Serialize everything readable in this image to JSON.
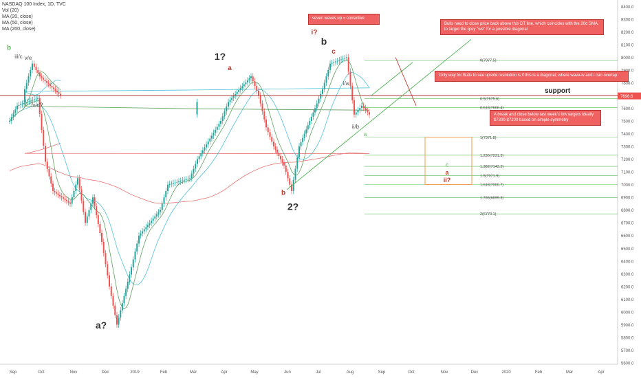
{
  "legend": {
    "title": "NASDAQ 100 Index, 1D, TVC",
    "lines": [
      "Vol (20)",
      "MA (20, close)",
      "MA (50, close)",
      "MA (200, close)"
    ]
  },
  "colors": {
    "up": "#26a69a",
    "down": "#ef5350",
    "ma20": "#5d9e5d",
    "ma50": "#4fc3d8",
    "ma200": "#e57373",
    "fib": "#5cb85c",
    "support": "#b33a3a",
    "annotation_bg": "#f06262",
    "box": "#f39c4a"
  },
  "chart_data": {
    "type": "candlestick",
    "title": "NASDAQ 100 Index, 1D, TVC",
    "y_axis": {
      "range": [
        5600,
        8450
      ],
      "ticks": [
        5600,
        5700,
        5800,
        5900,
        6000,
        6100,
        6200,
        6300,
        6400,
        6500,
        6600,
        6700,
        6800,
        6900,
        7000,
        7100,
        7200,
        7300,
        7400,
        7500,
        7600,
        7700,
        7800,
        7900,
        8000,
        8100,
        8200,
        8300,
        8400
      ],
      "tick_labels": [
        "5600.0",
        "5700.0",
        "5800.0",
        "5900.0",
        "6000.0",
        "6100.0",
        "6200.0",
        "6300.0",
        "6400.0",
        "6500.0",
        "6600.0",
        "6700.0",
        "6800.0",
        "6900.0",
        "7000.0",
        "7100.0",
        "7200.0",
        "7300.0",
        "7400.0",
        "7500.0",
        "7600.0",
        "7700.0",
        "7800.0",
        "7900.0",
        "8000.0",
        "8100.0",
        "8200.0",
        "8300.0",
        "8400.0"
      ],
      "current_price": 7696.6,
      "current_price_label": "7696.6"
    },
    "x_axis": {
      "labels": [
        "Sep",
        "Oct",
        "Nov",
        "Dec",
        "2019",
        "Feb",
        "Mar",
        "Apr",
        "May",
        "Jun",
        "Jul",
        "Aug",
        "Sep",
        "Oct",
        "Nov",
        "Dec",
        "2020",
        "Feb",
        "Mar",
        "Apr"
      ]
    },
    "pivots": [
      [
        "Sep",
        7500
      ],
      [
        "Sep",
        7620
      ],
      [
        "Oct",
        7680
      ],
      [
        "Oct",
        7180
      ],
      [
        "Oct",
        6950
      ],
      [
        "Nov",
        6850
      ],
      [
        "Nov",
        7050
      ],
      [
        "Nov",
        6700
      ],
      [
        "Nov",
        6900
      ],
      [
        "Dec",
        6550
      ],
      [
        "Dec",
        6200
      ],
      [
        "Dec",
        5900
      ],
      [
        "2019",
        6350
      ],
      [
        "2019",
        6600
      ],
      [
        "Feb",
        6800
      ],
      [
        "Feb",
        7000
      ],
      [
        "Mar",
        7050
      ],
      [
        "Mar",
        7200
      ],
      [
        "Apr",
        7500
      ],
      [
        "Apr",
        7650
      ],
      [
        "May",
        7850
      ],
      [
        "May",
        7700
      ],
      [
        "May",
        7450
      ],
      [
        "May",
        7300
      ],
      [
        "Jun",
        7150
      ],
      [
        "Jun",
        6950
      ],
      [
        "Jun",
        7300
      ],
      [
        "Jul",
        7600
      ],
      [
        "Jul",
        7750
      ],
      [
        "Jul",
        7950
      ],
      [
        "Aug",
        8000
      ],
      [
        "Aug",
        7550
      ],
      [
        "Aug",
        7620
      ],
      [
        "Aug",
        7550
      ],
      [
        "Sep",
        7750
      ],
      [
        "Sep",
        7950
      ],
      [
        "Sep",
        7850
      ],
      [
        "Oct",
        7700
      ]
    ],
    "fib_levels": [
      {
        "label": "0(7977.5)",
        "value": 7977.5
      },
      {
        "label": "0.5(7675.6)",
        "value": 7675.6
      },
      {
        "label": "0.618(7606.4)",
        "value": 7606.4
      },
      {
        "label": "1(7371.8)",
        "value": 7371.8
      },
      {
        "label": "1.236(7231.3)",
        "value": 7231.3
      },
      {
        "label": "1.382(7143.2)",
        "value": 7143.2
      },
      {
        "label": "1.5(7071.9)",
        "value": 7071.9
      },
      {
        "label": "1.618(7000.7)",
        "value": 7000.7
      },
      {
        "label": "1.786(6899.3)",
        "value": 6899.3
      },
      {
        "label": "2(6770.1)",
        "value": 6770.1
      }
    ],
    "support": {
      "label": "support",
      "value": 7700
    },
    "target_box": {
      "low": 7000.7,
      "high": 7371.8,
      "labels": [
        "c",
        "a",
        "ii?"
      ]
    },
    "wave_labels": [
      {
        "text": "a?",
        "x": "Dec",
        "y": 5870,
        "size": "big",
        "color": "#333"
      },
      {
        "text": "1?",
        "x": "Apr",
        "y": 7980,
        "size": "big",
        "color": "#333"
      },
      {
        "text": "a",
        "x": "Apr",
        "y": 7900,
        "size": "mid",
        "color": "#c0392b"
      },
      {
        "text": "b",
        "x": "Jun",
        "y": 6920,
        "size": "mid",
        "color": "#c0392b"
      },
      {
        "text": "2?",
        "x": "Jun",
        "y": 6800,
        "size": "big",
        "color": "#333"
      },
      {
        "text": "i?",
        "x": "Jul",
        "y": 8180,
        "size": "mid",
        "color": "#c0392b"
      },
      {
        "text": "b",
        "x": "Jul",
        "y": 8100,
        "size": "big",
        "color": "#333"
      },
      {
        "text": "c",
        "x": "Jul",
        "y": 8030,
        "size": "mid",
        "color": "#c0392b"
      },
      {
        "text": "b",
        "x": "Sep",
        "y": 8060,
        "size": "mid",
        "color": "#5cb85c"
      },
      {
        "text": "iii/c",
        "x": "Sep",
        "y": 7990,
        "size": "small",
        "color": "#555"
      },
      {
        "text": "v/e",
        "x": "Sep",
        "y": 7980,
        "size": "small",
        "color": "#555"
      },
      {
        "text": "iv/d?",
        "x": "Oct",
        "y": 7610,
        "size": "small",
        "color": "#555"
      },
      {
        "text": "i/a",
        "x": "Aug",
        "y": 7780,
        "size": "small",
        "color": "#555"
      },
      {
        "text": "ii/b",
        "x": "Aug",
        "y": 7440,
        "size": "small",
        "color": "#555"
      },
      {
        "text": "a",
        "x": "Aug",
        "y": 7380,
        "size": "small",
        "color": "#5cb85c"
      }
    ],
    "annotations": [
      "seven waves up  =  corrective",
      "Bulls need to close price back above this DT line, which coincides with the 20d SMA, to target the grey \"v/e\" for a possible diagonal",
      "Only way for Bulls to see upside resolution is if this is a diagonal; where wave-iv and i can overlap",
      "A break and close below last week's low targets ideally $7300-$7200 based on simple symmetry"
    ]
  }
}
